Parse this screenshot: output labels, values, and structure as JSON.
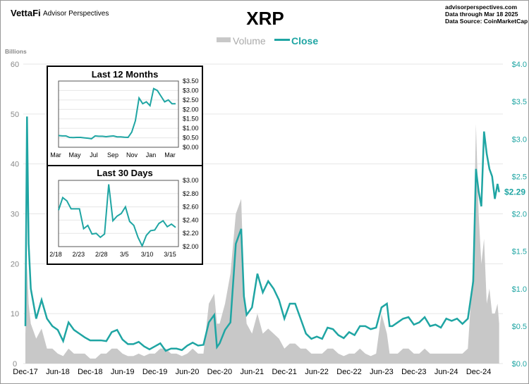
{
  "header": {
    "logo": "VettaFi",
    "brand": "Advisor Perspectives",
    "title": "XRP",
    "site": "advisorperspectives.com",
    "through": "Data through  Mar 18 2025",
    "source": "Data Source:  CoinMarketCap"
  },
  "colors": {
    "close": "#1fa5a3",
    "volume": "#c8c8c8"
  },
  "chart_data": [
    {
      "type": "line",
      "title": "XRP",
      "ylabel": "Billions",
      "legend": [
        "Volume",
        "Close"
      ],
      "legend_position": "top-center",
      "y_left": {
        "label": "Billions",
        "range": [
          0,
          60
        ],
        "ticks": [
          "0",
          "10",
          "20",
          "30",
          "40",
          "50",
          "60"
        ]
      },
      "y_right": {
        "range": [
          0,
          4
        ],
        "ticks": [
          "$0.0",
          "$0.5",
          "$1.0",
          "$1.5",
          "$2.0",
          "$2.5",
          "$3.0",
          "$3.5",
          "$4.0"
        ]
      },
      "x_ticks": [
        "Dec-17",
        "Jun-18",
        "Dec-18",
        "Jun-19",
        "Dec-19",
        "Jun-20",
        "Dec-20",
        "Jun-21",
        "Dec-21",
        "Jun-22",
        "Dec-22",
        "Jun-23",
        "Dec-23",
        "Jun-24",
        "Dec-24"
      ],
      "last_label": "$2.29",
      "x_months": [
        0,
        0.3,
        0.6,
        1,
        2,
        3,
        4,
        5,
        6,
        7,
        8,
        9,
        10,
        11,
        12,
        13,
        14,
        15,
        16,
        17,
        18,
        19,
        20,
        21,
        22,
        23,
        24,
        25,
        26,
        27,
        28,
        29,
        30,
        31,
        32,
        33,
        34,
        35,
        35.5,
        36,
        37,
        38,
        39,
        40,
        40.5,
        41,
        42,
        43,
        44,
        45,
        46,
        47,
        48,
        49,
        50,
        51,
        52,
        53,
        54,
        55,
        56,
        57,
        58,
        59,
        60,
        61,
        62,
        63,
        64,
        65,
        66,
        67,
        67.5,
        68,
        69,
        70,
        71,
        72,
        73,
        74,
        75,
        76,
        77,
        78,
        79,
        80,
        81,
        82,
        83,
        83.5,
        84,
        84.5,
        85,
        85.5,
        86,
        86.5,
        87,
        87.5,
        87.8
      ],
      "close": [
        0.5,
        3.3,
        1.6,
        1.0,
        0.6,
        0.85,
        0.6,
        0.5,
        0.45,
        0.3,
        0.55,
        0.45,
        0.4,
        0.35,
        0.31,
        0.31,
        0.31,
        0.3,
        0.42,
        0.45,
        0.32,
        0.26,
        0.26,
        0.29,
        0.23,
        0.19,
        0.23,
        0.27,
        0.17,
        0.2,
        0.2,
        0.18,
        0.24,
        0.28,
        0.24,
        0.25,
        0.55,
        0.65,
        0.22,
        0.27,
        0.45,
        0.55,
        1.6,
        1.8,
        0.9,
        0.65,
        0.75,
        1.2,
        0.95,
        1.1,
        1.0,
        0.85,
        0.6,
        0.8,
        0.8,
        0.6,
        0.4,
        0.33,
        0.36,
        0.33,
        0.48,
        0.46,
        0.38,
        0.34,
        0.42,
        0.38,
        0.5,
        0.5,
        0.46,
        0.48,
        0.75,
        0.8,
        0.5,
        0.5,
        0.55,
        0.6,
        0.62,
        0.52,
        0.55,
        0.62,
        0.5,
        0.52,
        0.48,
        0.6,
        0.57,
        0.6,
        0.53,
        0.6,
        1.1,
        2.6,
        2.3,
        2.1,
        3.1,
        2.8,
        2.6,
        2.5,
        2.2,
        2.4,
        2.29
      ],
      "volume_billions": [
        6,
        20,
        12,
        8,
        5,
        7,
        3,
        3,
        2,
        1.5,
        3,
        2,
        2,
        2,
        1,
        1,
        2,
        2,
        3,
        3,
        2,
        1.5,
        1.5,
        2,
        1.5,
        2,
        2,
        3,
        3,
        2,
        2,
        1.5,
        2,
        3,
        2,
        2,
        12,
        14,
        8,
        8,
        12,
        18,
        30,
        33,
        15,
        8,
        6,
        10,
        6,
        7,
        6,
        5,
        3,
        4,
        4,
        3,
        3,
        2,
        2,
        2,
        3,
        3,
        2,
        1.5,
        2,
        2,
        3,
        2,
        1.5,
        2,
        10,
        6,
        2,
        2,
        2,
        3,
        3,
        2,
        2,
        3,
        2,
        2,
        2,
        2,
        2,
        2,
        2,
        3,
        20,
        48,
        30,
        20,
        25,
        12,
        15,
        10,
        10,
        12,
        8
      ]
    },
    {
      "type": "line",
      "title": "Last 12 Months",
      "x_ticks": [
        "Mar",
        "May",
        "Jul",
        "Sep",
        "Nov",
        "Jan",
        "Mar"
      ],
      "y_ticks": [
        "$0.00",
        "$0.50",
        "$1.00",
        "$1.50",
        "$2.00",
        "$2.50",
        "$3.00",
        "$3.50"
      ],
      "range": [
        0,
        3.5
      ],
      "values": [
        0.62,
        0.6,
        0.6,
        0.52,
        0.51,
        0.52,
        0.52,
        0.5,
        0.48,
        0.45,
        0.6,
        0.58,
        0.58,
        0.56,
        0.58,
        0.6,
        0.55,
        0.55,
        0.53,
        0.52,
        0.8,
        1.4,
        2.6,
        2.3,
        2.4,
        2.2,
        3.1,
        3.0,
        2.7,
        2.4,
        2.5,
        2.3,
        2.3
      ]
    },
    {
      "type": "line",
      "title": "Last 30 Days",
      "x_ticks": [
        "2/18",
        "2/23",
        "2/28",
        "3/5",
        "3/10",
        "3/15"
      ],
      "y_ticks": [
        "$2.00",
        "$2.20",
        "$2.40",
        "$2.60",
        "$2.80",
        "$3.00"
      ],
      "range": [
        2,
        3
      ],
      "values": [
        2.55,
        2.74,
        2.69,
        2.57,
        2.57,
        2.57,
        2.27,
        2.32,
        2.19,
        2.2,
        2.14,
        2.19,
        2.94,
        2.39,
        2.46,
        2.5,
        2.6,
        2.38,
        2.32,
        2.14,
        2.01,
        2.17,
        2.24,
        2.25,
        2.35,
        2.39,
        2.3,
        2.34,
        2.29
      ]
    }
  ]
}
